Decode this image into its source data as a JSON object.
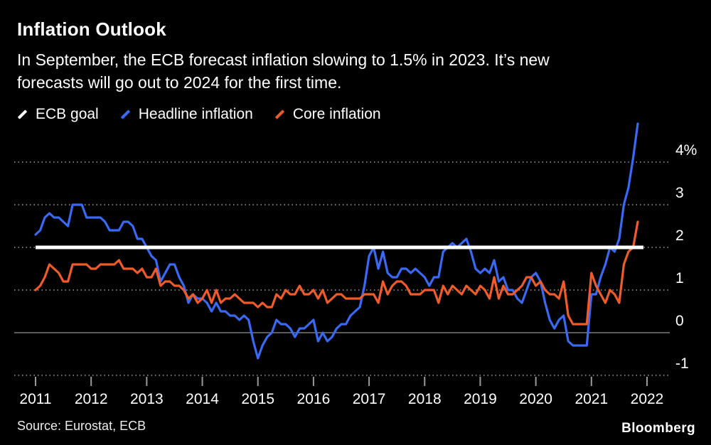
{
  "header": {
    "title": "Inflation Outlook",
    "subtitle_lines": [
      "In September, the ECB forecast inflation slowing to 1.5% in 2023. It’s new",
      "forecasts will go out to 2024 for the first time."
    ]
  },
  "legend": {
    "items": [
      {
        "label": "ECB goal",
        "color": "#ffffff"
      },
      {
        "label": "Headline inflation",
        "color": "#3a6af5"
      },
      {
        "label": "Core inflation",
        "color": "#f05b2b"
      }
    ]
  },
  "chart_data": {
    "type": "line",
    "title": "Inflation Outlook",
    "xlabel": "",
    "ylabel": "",
    "x_years": [
      2011,
      2012,
      2013,
      2014,
      2015,
      2016,
      2017,
      2018,
      2019,
      2020,
      2021,
      2022
    ],
    "yticks": [
      4,
      3,
      2,
      1,
      0,
      -1
    ],
    "ylabels": [
      "4%",
      "3",
      "2",
      "1",
      "0",
      "-1"
    ],
    "ylim": [
      -1.3,
      5.0
    ],
    "x_range": [
      2011,
      2022
    ],
    "grid": "dotted horizontal, solid zero line",
    "legend_position": "top",
    "ecb_goal": {
      "label": "ECB goal",
      "value": 2.0,
      "color": "#ffffff"
    },
    "series": [
      {
        "name": "Headline inflation",
        "color": "#3a6af5",
        "start_year": 2011,
        "frequency": "monthly",
        "values": [
          2.3,
          2.4,
          2.7,
          2.8,
          2.7,
          2.7,
          2.6,
          2.5,
          3.0,
          3.0,
          3.0,
          2.7,
          2.7,
          2.7,
          2.7,
          2.6,
          2.4,
          2.4,
          2.4,
          2.6,
          2.6,
          2.5,
          2.2,
          2.2,
          2.0,
          1.8,
          1.7,
          1.2,
          1.4,
          1.6,
          1.6,
          1.3,
          1.1,
          0.7,
          0.9,
          0.8,
          0.8,
          0.7,
          0.5,
          0.7,
          0.5,
          0.5,
          0.4,
          0.4,
          0.3,
          0.4,
          0.3,
          -0.2,
          -0.6,
          -0.3,
          -0.1,
          0.0,
          0.3,
          0.2,
          0.2,
          0.1,
          -0.1,
          0.1,
          0.1,
          0.2,
          0.3,
          -0.2,
          0.0,
          -0.2,
          -0.1,
          0.1,
          0.2,
          0.2,
          0.4,
          0.5,
          0.6,
          1.1,
          1.8,
          2.0,
          1.5,
          1.9,
          1.4,
          1.3,
          1.3,
          1.5,
          1.5,
          1.4,
          1.5,
          1.4,
          1.3,
          1.1,
          1.3,
          1.3,
          1.9,
          2.0,
          2.1,
          2.0,
          2.1,
          2.2,
          1.9,
          1.5,
          1.4,
          1.5,
          1.4,
          1.7,
          1.2,
          1.3,
          1.0,
          1.0,
          0.8,
          0.7,
          1.0,
          1.3,
          1.4,
          1.2,
          0.7,
          0.3,
          0.1,
          0.3,
          0.4,
          -0.2,
          -0.3,
          -0.3,
          -0.3,
          -0.3,
          0.9,
          0.9,
          1.3,
          1.6,
          2.0,
          1.9,
          2.2,
          3.0,
          3.4,
          4.1,
          4.9
        ]
      },
      {
        "name": "Core inflation",
        "color": "#f05b2b",
        "start_year": 2011,
        "frequency": "monthly",
        "values": [
          1.0,
          1.1,
          1.3,
          1.6,
          1.5,
          1.4,
          1.2,
          1.2,
          1.6,
          1.6,
          1.6,
          1.6,
          1.5,
          1.5,
          1.6,
          1.6,
          1.6,
          1.6,
          1.7,
          1.5,
          1.5,
          1.5,
          1.4,
          1.5,
          1.3,
          1.3,
          1.5,
          1.1,
          1.2,
          1.2,
          1.1,
          1.1,
          1.0,
          0.8,
          0.9,
          0.7,
          0.8,
          1.0,
          0.7,
          1.0,
          0.7,
          0.8,
          0.8,
          0.9,
          0.8,
          0.7,
          0.7,
          0.7,
          0.6,
          0.7,
          0.6,
          0.6,
          0.9,
          0.8,
          1.0,
          0.9,
          0.9,
          1.1,
          0.9,
          0.9,
          1.0,
          0.8,
          1.0,
          0.7,
          0.8,
          0.9,
          0.9,
          0.8,
          0.8,
          0.8,
          0.8,
          0.9,
          0.9,
          0.9,
          0.7,
          1.2,
          0.9,
          1.1,
          1.2,
          1.2,
          1.1,
          0.9,
          0.9,
          0.9,
          1.0,
          1.0,
          1.0,
          0.7,
          1.1,
          0.9,
          1.1,
          1.0,
          0.9,
          1.1,
          1.0,
          0.9,
          1.1,
          1.0,
          0.8,
          1.3,
          0.8,
          1.1,
          0.9,
          0.9,
          1.0,
          1.1,
          1.3,
          1.3,
          1.1,
          1.2,
          1.0,
          0.9,
          0.9,
          0.8,
          1.2,
          0.4,
          0.2,
          0.2,
          0.2,
          0.2,
          1.4,
          1.1,
          0.9,
          0.7,
          1.0,
          0.9,
          0.7,
          1.6,
          1.9,
          2.0,
          2.6
        ]
      }
    ]
  },
  "footer": {
    "source": "Source: Eurostat, ECB",
    "logo": "Bloomberg"
  }
}
